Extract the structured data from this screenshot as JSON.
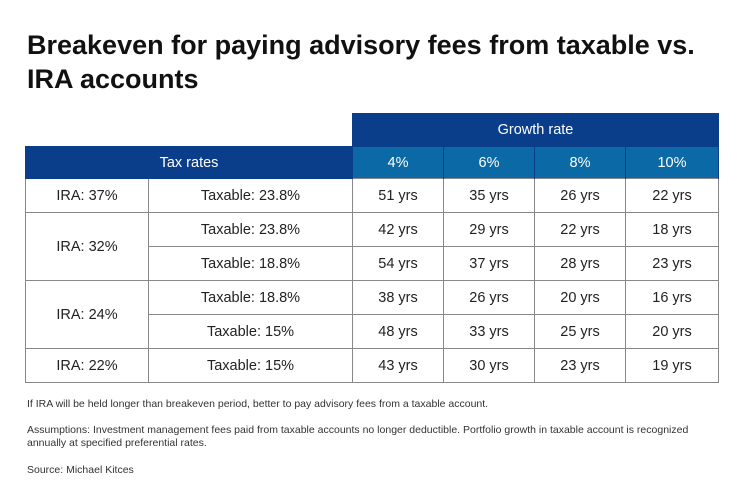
{
  "title": "Breakeven for paying advisory fees from taxable vs. IRA accounts",
  "chart_data": {
    "type": "table",
    "header_growth": "Growth rate",
    "header_tax": "Tax rates",
    "growth_rates": [
      "4%",
      "6%",
      "8%",
      "10%"
    ],
    "rows": [
      {
        "ira": "IRA: 37%",
        "taxable": "Taxable: 23.8%",
        "values": [
          "51 yrs",
          "35 yrs",
          "26 yrs",
          "22 yrs"
        ]
      },
      {
        "ira": "IRA: 32%",
        "taxable": "Taxable: 23.8%",
        "values": [
          "42 yrs",
          "29 yrs",
          "22 yrs",
          "18 yrs"
        ]
      },
      {
        "ira": "IRA: 32%",
        "taxable": "Taxable: 18.8%",
        "values": [
          "54 yrs",
          "37 yrs",
          "28 yrs",
          "23 yrs"
        ]
      },
      {
        "ira": "IRA: 24%",
        "taxable": "Taxable: 18.8%",
        "values": [
          "38 yrs",
          "26 yrs",
          "20 yrs",
          "16 yrs"
        ]
      },
      {
        "ira": "IRA: 24%",
        "taxable": "Taxable: 15%",
        "values": [
          "48 yrs",
          "33 yrs",
          "25 yrs",
          "20 yrs"
        ]
      },
      {
        "ira": "IRA: 22%",
        "taxable": "Taxable: 15%",
        "values": [
          "43 yrs",
          "30 yrs",
          "23 yrs",
          "19 yrs"
        ]
      }
    ]
  },
  "notes": {
    "note": "If IRA will be held longer than breakeven period, better to pay advisory fees from a taxable account.",
    "assumptions": "Assumptions: Investment management fees paid from taxable accounts no longer deductible. Portfolio growth in taxable account is recognized annually at specified preferential rates.",
    "source": "Source: Michael Kitces"
  },
  "colors": {
    "header_dark": "#0a3d8a",
    "header_light": "#0b6aa6"
  }
}
